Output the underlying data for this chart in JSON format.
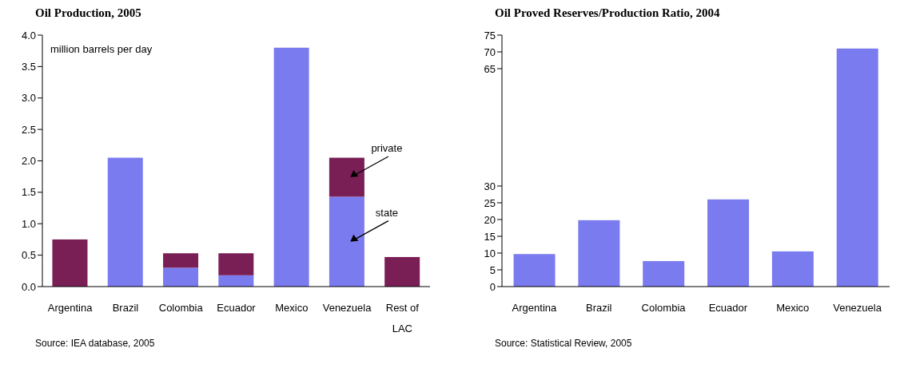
{
  "chart_data": [
    {
      "type": "bar",
      "title": "Oil Production, 2005",
      "ylabel": "million barrels per day",
      "categories": [
        "Argentina",
        "Brazil",
        "Colombia",
        "Ecuador",
        "Mexico",
        "Venezuela",
        "Rest of LAC"
      ],
      "stacked": true,
      "series": [
        {
          "name": "state",
          "color": "#7b7bf0",
          "values": [
            0,
            2.05,
            0.3,
            0.18,
            3.8,
            1.43,
            0
          ]
        },
        {
          "name": "private",
          "color": "#7a1f55",
          "values": [
            0.75,
            0,
            0.23,
            0.35,
            0,
            0.62,
            0.47
          ]
        }
      ],
      "ylim": [
        0,
        4
      ],
      "yticks": [
        {
          "value": 0,
          "label": "0.0"
        },
        0.5,
        {
          "value": 1,
          "label": "1.0"
        },
        1.5,
        {
          "value": 2,
          "label": "2.0"
        },
        2.5,
        {
          "value": 3,
          "label": "3.0"
        },
        3.5,
        {
          "value": 4,
          "label": "4.0"
        }
      ],
      "annotations": [
        "Source:  IEA database, 2005"
      ]
    },
    {
      "type": "bar",
      "title": "Oil Proved Reserves/Production Ratio, 2004",
      "categories": [
        "Argentina",
        "Brazil",
        "Colombia",
        "Ecuador",
        "Mexico",
        "Venezuela"
      ],
      "values": [
        9.7,
        19.8,
        7.6,
        26,
        10.5,
        71
      ],
      "color": "#7b7bf0",
      "ylim": [
        0,
        75
      ],
      "yticks": [
        0,
        5,
        10,
        15,
        20,
        25,
        30,
        65,
        70,
        75
      ],
      "annotations": [
        "Source:  Statistical Review, 2005"
      ]
    }
  ]
}
